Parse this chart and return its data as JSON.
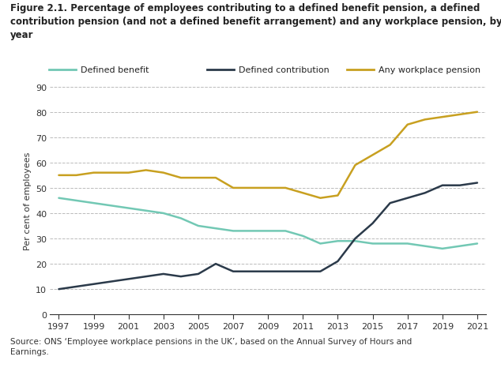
{
  "title": "Figure 2.1. Percentage of employees contributing to a defined benefit pension, a defined\ncontribution pension (and not a defined benefit arrangement) and any workplace pension, by\nyear",
  "ylabel": "Per cent of employees",
  "source": "Source: ONS ‘Employee workplace pensions in the UK’, based on the Annual Survey of Hours and\nEarnings.",
  "years": [
    1997,
    1998,
    1999,
    2000,
    2001,
    2002,
    2003,
    2004,
    2005,
    2006,
    2007,
    2008,
    2009,
    2010,
    2011,
    2012,
    2013,
    2014,
    2015,
    2016,
    2017,
    2018,
    2019,
    2020,
    2021
  ],
  "defined_benefit": [
    46,
    45,
    44,
    43,
    42,
    41,
    40,
    38,
    35,
    34,
    33,
    33,
    33,
    33,
    31,
    28,
    29,
    29,
    28,
    28,
    28,
    27,
    26,
    27,
    28
  ],
  "defined_contribution": [
    10,
    11,
    12,
    13,
    14,
    15,
    16,
    15,
    16,
    20,
    17,
    17,
    17,
    17,
    17,
    17,
    21,
    30,
    36,
    44,
    46,
    48,
    51,
    51,
    52
  ],
  "any_workplace": [
    55,
    55,
    56,
    56,
    56,
    57,
    56,
    54,
    54,
    54,
    50,
    50,
    50,
    50,
    48,
    46,
    47,
    59,
    63,
    67,
    75,
    77,
    78,
    79,
    80
  ],
  "defined_benefit_color": "#72c8b4",
  "defined_contribution_color": "#2b3a4a",
  "any_workplace_color": "#c8a020",
  "bg_color": "#ffffff",
  "plot_bg_color": "#ffffff",
  "grid_color": "#bbbbbb",
  "ylim": [
    0,
    90
  ],
  "yticks": [
    0,
    10,
    20,
    30,
    40,
    50,
    60,
    70,
    80,
    90
  ],
  "xtick_years": [
    1997,
    1999,
    2001,
    2003,
    2005,
    2007,
    2009,
    2011,
    2013,
    2015,
    2017,
    2019,
    2021
  ],
  "legend_labels": [
    "Defined benefit",
    "Defined contribution",
    "Any workplace pension"
  ]
}
